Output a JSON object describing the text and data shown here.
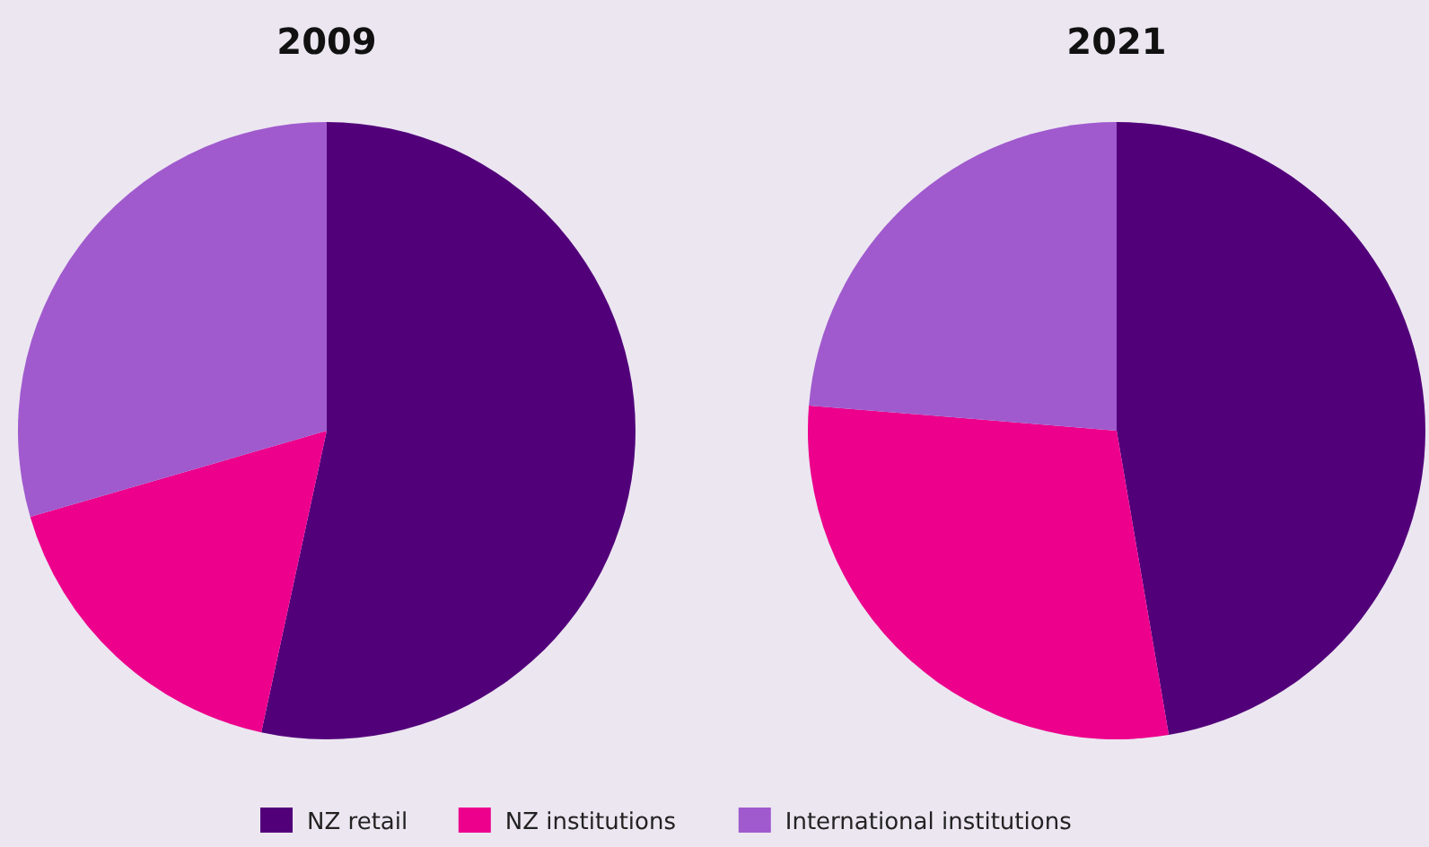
{
  "chart_data": [
    {
      "type": "pie",
      "title": "2009",
      "categories": [
        "NZ retail",
        "NZ institutions",
        "International institutions"
      ],
      "values": [
        53.4,
        17.1,
        29.5
      ],
      "colors": [
        "#52007a",
        "#ec008c",
        "#a05acd"
      ],
      "legend": "bottom"
    },
    {
      "type": "pie",
      "title": "2021",
      "categories": [
        null,
        null,
        null
      ],
      "values": [
        47.3,
        29.0,
        23.7
      ],
      "colors": [
        "#52007a",
        "#ec008c",
        "#a05acd"
      ]
    }
  ]
}
